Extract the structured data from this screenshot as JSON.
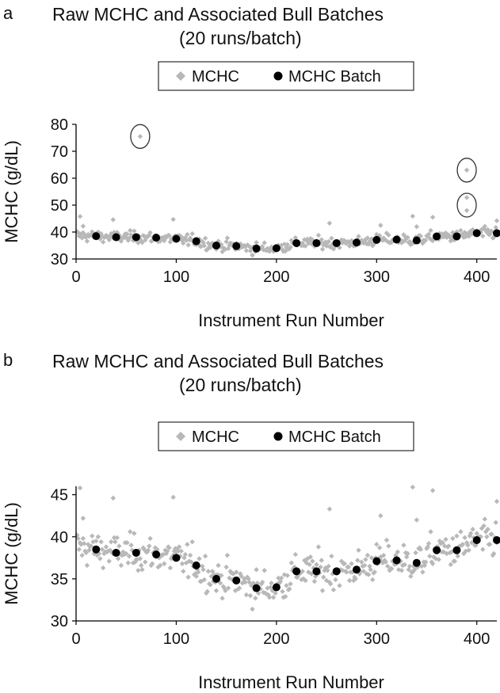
{
  "chart_data": [
    {
      "type": "scatter",
      "panel_letter": "a",
      "title": "Raw MCHC and Associated Bull Batches",
      "subtitle": "(20 runs/batch)",
      "xlabel": "Instrument Run Number",
      "ylabel": "MCHC (g/dL)",
      "xlim": [
        0,
        420
      ],
      "ylim": [
        30,
        80
      ],
      "xticks": [
        0,
        100,
        200,
        300,
        400
      ],
      "yticks": [
        30,
        40,
        50,
        60,
        70,
        80
      ],
      "grid": false,
      "legend_position": "top-center",
      "series_colors": {
        "raw": "#b8b8b8",
        "batch": "#000000"
      },
      "series": [
        {
          "name": "MCHC",
          "marker": "diamond",
          "color": "#b8b8b8",
          "values": []
        },
        {
          "name": "MCHC Batch",
          "marker": "circle",
          "color": "#000000",
          "x": [
            20,
            40,
            60,
            80,
            100,
            120,
            140,
            160,
            180,
            200,
            220,
            240,
            260,
            280,
            300,
            320,
            340,
            360,
            380,
            400,
            420
          ],
          "y": [
            38.5,
            38.1,
            38.1,
            37.9,
            37.5,
            36.6,
            35.0,
            34.8,
            33.9,
            34.0,
            35.9,
            35.9,
            35.9,
            36.1,
            37.1,
            37.2,
            36.9,
            38.4,
            38.4,
            39.6,
            39.6
          ]
        }
      ],
      "annotations": [
        {
          "shape": "circle",
          "around": "outlier",
          "x": 64,
          "y": 75.5
        },
        {
          "shape": "circle",
          "around": "outlier",
          "x": 390,
          "y": 63
        },
        {
          "shape": "circle",
          "around": "outlier",
          "x": 390,
          "y": 50
        }
      ]
    },
    {
      "type": "scatter",
      "panel_letter": "b",
      "title": "Raw MCHC and Associated Bull Batches",
      "subtitle": "(20 runs/batch)",
      "xlabel": "Instrument Run Number",
      "ylabel": "MCHC (g/dL)",
      "xlim": [
        0,
        420
      ],
      "ylim": [
        30,
        46
      ],
      "xticks": [
        0,
        100,
        200,
        300,
        400
      ],
      "yticks": [
        30,
        35,
        40,
        45
      ],
      "grid": false,
      "legend_position": "top-center",
      "series_colors": {
        "raw": "#b8b8b8",
        "batch": "#000000"
      },
      "series": [
        {
          "name": "MCHC",
          "marker": "diamond",
          "color": "#b8b8b8",
          "values": []
        },
        {
          "name": "MCHC Batch",
          "marker": "circle",
          "color": "#000000",
          "x": [
            20,
            40,
            60,
            80,
            100,
            120,
            140,
            160,
            180,
            200,
            220,
            240,
            260,
            280,
            300,
            320,
            340,
            360,
            380,
            400,
            420
          ],
          "y": [
            38.5,
            38.1,
            38.1,
            37.9,
            37.5,
            36.6,
            35.0,
            34.8,
            33.9,
            34.0,
            35.9,
            35.9,
            35.9,
            36.1,
            37.1,
            37.2,
            36.9,
            38.4,
            38.4,
            39.6,
            39.6
          ]
        }
      ]
    }
  ]
}
